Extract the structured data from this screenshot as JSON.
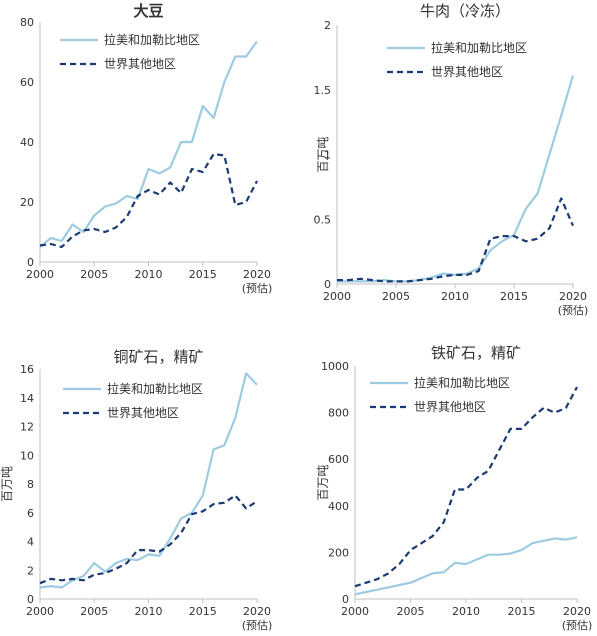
{
  "colors": {
    "latam": "#9dcbe2",
    "world": "#1b3a73",
    "axis": "#bfbfbf",
    "text": "#333333"
  },
  "chart_data": [
    {
      "type": "line",
      "title": "大豆",
      "ylabel": "",
      "x_tick_labels": [
        "2000",
        "2005",
        "2010",
        "2015",
        "2020"
      ],
      "x_note": "(预估)",
      "xlim": [
        2000,
        2020
      ],
      "ylim": [
        0,
        80
      ],
      "y_ticks": [
        0,
        20,
        40,
        60,
        80
      ],
      "legend_position": "top-left",
      "series": [
        {
          "name": "拉美和加勒比地区",
          "style": "solid",
          "color": "#9dcbe2",
          "x": [
            2000,
            2001,
            2002,
            2003,
            2004,
            2005,
            2006,
            2007,
            2008,
            2009,
            2010,
            2011,
            2012,
            2013,
            2014,
            2015,
            2016,
            2017,
            2018,
            2019,
            2020
          ],
          "y": [
            5,
            8,
            7,
            12.5,
            10,
            15.5,
            18.5,
            19.5,
            22,
            21,
            31,
            29.5,
            31.5,
            40,
            40,
            52,
            48,
            60,
            68.5,
            68.5,
            73.5
          ]
        },
        {
          "name": "世界其他地区",
          "style": "dashed",
          "color": "#1b3a73",
          "x": [
            2000,
            2001,
            2002,
            2003,
            2004,
            2005,
            2006,
            2007,
            2008,
            2009,
            2010,
            2011,
            2012,
            2013,
            2014,
            2015,
            2016,
            2017,
            2018,
            2019,
            2020
          ],
          "y": [
            5.5,
            6,
            5,
            8.5,
            10.5,
            11,
            10,
            11.5,
            15,
            22,
            24,
            22.5,
            26.5,
            23,
            31,
            30,
            36,
            35.5,
            19,
            20,
            27
          ]
        }
      ]
    },
    {
      "type": "line",
      "title": "牛肉（冷冻）",
      "ylabel": "百万吨",
      "x_tick_labels": [
        "2000",
        "2005",
        "2010",
        "2015",
        "2020"
      ],
      "x_note": "(预估)",
      "xlim": [
        2000,
        2020
      ],
      "ylim": [
        0,
        2
      ],
      "y_ticks": [
        0,
        0.5,
        1,
        1.5,
        2
      ],
      "y_tick_labels": [
        "0",
        "0.5",
        "1",
        "1.5",
        "2"
      ],
      "legend_position": "top-left",
      "series": [
        {
          "name": "拉美和加勒比地区",
          "style": "solid",
          "color": "#9dcbe2",
          "x": [
            2000,
            2001,
            2002,
            2003,
            2004,
            2005,
            2006,
            2007,
            2008,
            2009,
            2010,
            2011,
            2012,
            2013,
            2014,
            2015,
            2016,
            2017,
            2018,
            2019,
            2020
          ],
          "y": [
            0.02,
            0.02,
            0.02,
            0.02,
            0.03,
            0.02,
            0.02,
            0.03,
            0.05,
            0.08,
            0.07,
            0.08,
            0.12,
            0.26,
            0.33,
            0.38,
            0.58,
            0.7,
            1.0,
            1.3,
            1.61
          ]
        },
        {
          "name": "世界其他地区",
          "style": "dashed",
          "color": "#1b3a73",
          "x": [
            2000,
            2001,
            2002,
            2003,
            2004,
            2005,
            2006,
            2007,
            2008,
            2009,
            2010,
            2011,
            2012,
            2013,
            2014,
            2015,
            2016,
            2017,
            2018,
            2019,
            2020
          ],
          "y": [
            0.03,
            0.03,
            0.04,
            0.03,
            0.02,
            0.02,
            0.02,
            0.03,
            0.04,
            0.06,
            0.07,
            0.07,
            0.1,
            0.35,
            0.37,
            0.37,
            0.33,
            0.35,
            0.43,
            0.66,
            0.45
          ]
        }
      ]
    },
    {
      "type": "line",
      "title": "铜矿石，精矿",
      "ylabel": "百万吨",
      "x_tick_labels": [
        "2000",
        "2005",
        "2010",
        "2015",
        "2020"
      ],
      "x_note": "(预估)",
      "xlim": [
        2000,
        2020
      ],
      "ylim": [
        0,
        16
      ],
      "y_ticks": [
        0,
        2,
        4,
        6,
        8,
        10,
        12,
        14,
        16
      ],
      "legend_position": "top-left",
      "series": [
        {
          "name": "拉美和加勒比地区",
          "style": "solid",
          "color": "#9dcbe2",
          "x": [
            2000,
            2001,
            2002,
            2003,
            2004,
            2005,
            2006,
            2007,
            2008,
            2009,
            2010,
            2011,
            2012,
            2013,
            2014,
            2015,
            2016,
            2017,
            2018,
            2019,
            2020
          ],
          "y": [
            0.8,
            0.9,
            0.8,
            1.3,
            1.6,
            2.5,
            1.9,
            2.5,
            2.8,
            2.7,
            3.1,
            3.0,
            4.2,
            5.6,
            6.0,
            7.2,
            10.4,
            10.7,
            12.6,
            15.7,
            14.9
          ]
        },
        {
          "name": "世界其他地区",
          "style": "dashed",
          "color": "#1b3a73",
          "x": [
            2000,
            2001,
            2002,
            2003,
            2004,
            2005,
            2006,
            2007,
            2008,
            2009,
            2010,
            2011,
            2012,
            2013,
            2014,
            2015,
            2016,
            2017,
            2018,
            2019,
            2020
          ],
          "y": [
            1.1,
            1.4,
            1.3,
            1.4,
            1.3,
            1.7,
            1.8,
            2.1,
            2.5,
            3.4,
            3.4,
            3.3,
            3.8,
            4.6,
            5.9,
            6.1,
            6.6,
            6.7,
            7.2,
            6.3,
            6.8
          ]
        }
      ]
    },
    {
      "type": "line",
      "title": "铁矿石，精矿",
      "ylabel": "百万吨",
      "x_tick_labels": [
        "2000",
        "2005",
        "2010",
        "2015",
        "2020"
      ],
      "x_note": "(预估)",
      "xlim": [
        2000,
        2020
      ],
      "ylim": [
        0,
        1000
      ],
      "y_ticks": [
        0,
        200,
        400,
        600,
        800,
        1000
      ],
      "legend_position": "top-left",
      "series": [
        {
          "name": "拉美和加勒比地区",
          "style": "solid",
          "color": "#9dcbe2",
          "x": [
            2000,
            2001,
            2002,
            2003,
            2004,
            2005,
            2006,
            2007,
            2008,
            2009,
            2010,
            2011,
            2012,
            2013,
            2014,
            2015,
            2016,
            2017,
            2018,
            2019,
            2020
          ],
          "y": [
            20,
            30,
            40,
            50,
            60,
            70,
            90,
            110,
            115,
            155,
            150,
            170,
            190,
            190,
            195,
            210,
            240,
            250,
            260,
            255,
            265
          ]
        },
        {
          "name": "世界其他地区",
          "style": "dashed",
          "color": "#1b3a73",
          "x": [
            2000,
            2001,
            2002,
            2003,
            2004,
            2005,
            2006,
            2007,
            2008,
            2009,
            2010,
            2011,
            2012,
            2013,
            2014,
            2015,
            2016,
            2017,
            2018,
            2019,
            2020
          ],
          "y": [
            55,
            70,
            85,
            110,
            150,
            210,
            240,
            270,
            330,
            470,
            470,
            520,
            550,
            640,
            730,
            730,
            780,
            820,
            800,
            820,
            910
          ]
        }
      ]
    }
  ]
}
